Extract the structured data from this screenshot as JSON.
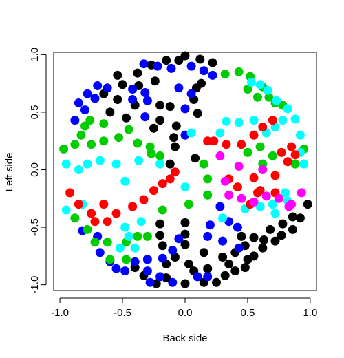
{
  "chart_data": {
    "type": "scatter",
    "title": "",
    "xlabel": "Back side",
    "ylabel": "Left side",
    "xlim": [
      -1.05,
      1.05
    ],
    "ylim": [
      -1.05,
      1.02
    ],
    "x_ticks": [
      -1.0,
      -0.5,
      0.0,
      0.5,
      1.0
    ],
    "x_tick_labels": [
      "-1.0",
      "-0.5",
      "0.0",
      "0.5",
      "1.0"
    ],
    "y_ticks": [
      -1.0,
      -0.5,
      0.0,
      0.5,
      1.0
    ],
    "y_tick_labels": [
      "-1.0",
      "-0.5",
      "0.0",
      "0.5",
      "1.0"
    ],
    "grid": false,
    "colors": {
      "black": "#000000",
      "blue": "#0000FF",
      "green": "#00CC00",
      "cyan": "#00FFFF",
      "red": "#FF0000",
      "magenta": "#FF00FF"
    },
    "groups": [
      {
        "color": "black",
        "points": [
          [
            0.0,
            0.99
          ],
          [
            0.12,
            0.96
          ],
          [
            0.22,
            0.93
          ],
          [
            -0.15,
            0.95
          ],
          [
            -0.27,
            0.91
          ],
          [
            -0.05,
            0.95
          ],
          [
            -0.54,
            0.82
          ],
          [
            -0.5,
            0.74
          ],
          [
            -0.65,
            0.66
          ],
          [
            -0.38,
            0.84
          ],
          [
            -0.24,
            0.77
          ],
          [
            -0.37,
            0.73
          ],
          [
            -0.54,
            0.61
          ],
          [
            -0.6,
            0.5
          ],
          [
            -0.47,
            0.45
          ],
          [
            -0.4,
            0.56
          ],
          [
            -0.2,
            0.56
          ],
          [
            -0.12,
            0.55
          ],
          [
            -0.2,
            0.43
          ],
          [
            -0.25,
            0.36
          ],
          [
            0.09,
            0.71
          ],
          [
            0.07,
            0.61
          ],
          [
            0.13,
            0.75
          ],
          [
            0.1,
            0.49
          ],
          [
            -0.07,
            0.38
          ],
          [
            -0.09,
            0.28
          ],
          [
            -0.08,
            0.2
          ],
          [
            0.08,
            0.1
          ],
          [
            -0.12,
            0.05
          ],
          [
            0.98,
            -0.3
          ],
          [
            0.92,
            -0.42
          ],
          [
            0.86,
            -0.52
          ],
          [
            0.77,
            -0.57
          ],
          [
            0.72,
            -0.62
          ],
          [
            0.62,
            -0.68
          ],
          [
            0.55,
            -0.75
          ],
          [
            0.5,
            -0.78
          ],
          [
            0.48,
            -0.85
          ],
          [
            0.4,
            -0.88
          ],
          [
            0.32,
            -0.92
          ],
          [
            0.25,
            -0.98
          ],
          [
            0.15,
            -0.98
          ],
          [
            0.0,
            -0.99
          ],
          [
            -0.15,
            -0.94
          ],
          [
            -0.23,
            -0.99
          ],
          [
            -0.33,
            -0.92
          ],
          [
            -0.4,
            -0.85
          ],
          [
            0.07,
            -0.88
          ],
          [
            0.18,
            -0.86
          ],
          [
            0.35,
            -0.82
          ],
          [
            0.3,
            -0.76
          ],
          [
            0.4,
            -0.72
          ],
          [
            0.48,
            -0.66
          ],
          [
            0.45,
            -0.58
          ],
          [
            0.55,
            -0.59
          ],
          [
            0.63,
            -0.61
          ],
          [
            0.68,
            -0.52
          ],
          [
            0.78,
            -0.47
          ],
          [
            0.86,
            -0.41
          ],
          [
            0.03,
            -0.82
          ],
          [
            -0.15,
            -0.82
          ],
          [
            -0.08,
            -0.76
          ],
          [
            0.15,
            -0.72
          ],
          [
            0.0,
            -0.65
          ],
          [
            -0.18,
            -0.66
          ],
          [
            0.0,
            -0.56
          ],
          [
            -0.2,
            -0.57
          ],
          [
            0.0,
            -0.46
          ],
          [
            -0.2,
            -0.47
          ]
        ]
      },
      {
        "color": "blue",
        "points": [
          [
            -0.33,
            0.92
          ],
          [
            -0.22,
            0.9
          ],
          [
            -0.11,
            0.88
          ],
          [
            0.05,
            0.9
          ],
          [
            0.15,
            0.86
          ],
          [
            0.22,
            0.82
          ],
          [
            -0.7,
            0.73
          ],
          [
            -0.62,
            0.71
          ],
          [
            -0.78,
            0.66
          ],
          [
            -0.72,
            0.62
          ],
          [
            -0.85,
            0.58
          ],
          [
            -0.8,
            0.52
          ],
          [
            -0.88,
            0.43
          ],
          [
            -0.42,
            0.7
          ],
          [
            -0.32,
            0.67
          ],
          [
            -0.05,
            0.71
          ],
          [
            0.05,
            0.66
          ],
          [
            -0.42,
            0.61
          ],
          [
            -0.3,
            0.6
          ],
          [
            -0.32,
            0.46
          ],
          [
            0.0,
            0.53
          ],
          [
            0.0,
            0.3
          ],
          [
            -0.82,
            -0.53
          ],
          [
            -0.7,
            -0.58
          ],
          [
            -0.68,
            -0.72
          ],
          [
            -0.6,
            -0.8
          ],
          [
            -0.55,
            -0.86
          ],
          [
            -0.48,
            -0.88
          ],
          [
            -0.3,
            -0.88
          ],
          [
            -0.28,
            -0.98
          ],
          [
            -0.2,
            -0.93
          ],
          [
            -0.1,
            -0.98
          ],
          [
            0.1,
            -0.93
          ],
          [
            0.18,
            -0.93
          ],
          [
            -0.4,
            -0.8
          ],
          [
            -0.3,
            -0.78
          ],
          [
            -0.18,
            -0.77
          ],
          [
            -0.1,
            -0.7
          ],
          [
            -0.05,
            -0.6
          ],
          [
            0.18,
            -0.58
          ],
          [
            0.2,
            -0.48
          ],
          [
            0.3,
            -0.62
          ],
          [
            0.42,
            -0.5
          ],
          [
            0.43,
            -0.68
          ],
          [
            0.35,
            -0.45
          ],
          [
            0.28,
            -0.32
          ]
        ]
      },
      {
        "color": "green",
        "points": [
          [
            0.32,
            0.83
          ],
          [
            0.43,
            0.85
          ],
          [
            0.52,
            0.81
          ],
          [
            0.5,
            0.7
          ],
          [
            0.62,
            0.72
          ],
          [
            0.67,
            0.63
          ],
          [
            0.58,
            0.63
          ],
          [
            0.72,
            0.58
          ],
          [
            0.78,
            0.56
          ],
          [
            -0.76,
            0.43
          ],
          [
            -0.8,
            0.38
          ],
          [
            -0.83,
            0.3
          ],
          [
            -0.75,
            0.22
          ],
          [
            -0.88,
            0.22
          ],
          [
            -0.97,
            0.18
          ],
          [
            -0.65,
            0.4
          ],
          [
            -0.53,
            0.28
          ],
          [
            -0.65,
            0.25
          ],
          [
            -0.45,
            0.35
          ],
          [
            -0.38,
            0.23
          ],
          [
            -0.27,
            0.14
          ],
          [
            -0.2,
            0.12
          ],
          [
            -0.28,
            0.2
          ],
          [
            0.95,
            0.18
          ],
          [
            0.88,
            0.05
          ],
          [
            0.7,
            0.12
          ],
          [
            0.62,
            0.05
          ],
          [
            0.6,
            0.2
          ],
          [
            0.5,
            0.15
          ],
          [
            -0.88,
            -0.42
          ],
          [
            -0.78,
            -0.52
          ],
          [
            -0.72,
            -0.63
          ],
          [
            -0.62,
            -0.63
          ],
          [
            -0.47,
            -0.63
          ],
          [
            -0.6,
            -0.78
          ],
          [
            -0.47,
            -0.78
          ],
          [
            -0.38,
            -0.58
          ],
          [
            -0.3,
            -0.58
          ],
          [
            -0.18,
            -0.35
          ],
          [
            0.03,
            -0.3
          ],
          [
            0.18,
            -0.22
          ],
          [
            0.18,
            -0.08
          ],
          [
            0.15,
            0.05
          ]
        ]
      },
      {
        "color": "cyan",
        "points": [
          [
            0.53,
            0.76
          ],
          [
            0.6,
            0.74
          ],
          [
            0.66,
            0.69
          ],
          [
            0.73,
            0.6
          ],
          [
            0.82,
            0.53
          ],
          [
            0.88,
            0.44
          ],
          [
            0.92,
            0.3
          ],
          [
            0.92,
            0.15
          ],
          [
            0.95,
            0.05
          ],
          [
            0.78,
            0.43
          ],
          [
            0.72,
            0.37
          ],
          [
            0.65,
            0.32
          ],
          [
            0.55,
            0.43
          ],
          [
            0.43,
            0.41
          ],
          [
            0.33,
            0.42
          ],
          [
            0.28,
            0.32
          ],
          [
            0.05,
            0.32
          ],
          [
            -0.95,
            0.05
          ],
          [
            -0.85,
            0.0
          ],
          [
            -0.78,
            0.05
          ],
          [
            -0.68,
            0.08
          ],
          [
            -0.55,
            0.05
          ],
          [
            -0.48,
            -0.1
          ],
          [
            -0.37,
            0.08
          ],
          [
            -0.2,
            0.05
          ],
          [
            -0.95,
            -0.35
          ],
          [
            -0.82,
            -0.3
          ],
          [
            -0.48,
            -0.5
          ],
          [
            -0.35,
            -0.45
          ],
          [
            -0.45,
            -0.58
          ],
          [
            -0.52,
            -0.68
          ],
          [
            -0.4,
            -0.68
          ],
          [
            0.0,
            -0.15
          ],
          [
            0.3,
            -0.42
          ],
          [
            0.48,
            -0.34
          ],
          [
            0.6,
            -0.32
          ],
          [
            0.7,
            -0.3
          ],
          [
            0.82,
            -0.27
          ],
          [
            0.72,
            -0.38
          ],
          [
            0.8,
            -0.2
          ]
        ]
      },
      {
        "color": "red",
        "points": [
          [
            0.7,
            0.43
          ],
          [
            0.62,
            0.37
          ],
          [
            0.55,
            0.3
          ],
          [
            0.45,
            0.22
          ],
          [
            0.33,
            0.22
          ],
          [
            0.23,
            0.25
          ],
          [
            0.18,
            0.25
          ],
          [
            0.85,
            0.2
          ],
          [
            0.77,
            0.15
          ],
          [
            0.88,
            0.13
          ],
          [
            0.82,
            0.07
          ],
          [
            0.72,
            -0.05
          ],
          [
            -0.92,
            -0.2
          ],
          [
            -0.85,
            -0.3
          ],
          [
            -0.75,
            -0.38
          ],
          [
            -0.65,
            -0.3
          ],
          [
            -0.55,
            -0.38
          ],
          [
            -0.42,
            -0.32
          ],
          [
            -0.33,
            -0.26
          ],
          [
            -0.25,
            -0.18
          ],
          [
            -0.18,
            -0.12
          ],
          [
            -0.12,
            -0.08
          ],
          [
            -0.08,
            -0.02
          ],
          [
            0.42,
            -0.15
          ],
          [
            0.55,
            -0.07
          ],
          [
            0.58,
            -0.2
          ],
          [
            0.72,
            -0.2
          ],
          [
            0.6,
            -0.18
          ],
          [
            0.52,
            -0.3
          ],
          [
            0.35,
            -0.08
          ],
          [
            -0.72,
            -0.45
          ],
          [
            -0.62,
            -0.45
          ]
        ]
      },
      {
        "color": "magenta",
        "points": [
          [
            0.28,
            0.12
          ],
          [
            0.43,
            0.03
          ],
          [
            0.62,
            0.0
          ],
          [
            0.32,
            -0.1
          ],
          [
            0.35,
            -0.22
          ],
          [
            0.45,
            -0.25
          ],
          [
            0.55,
            -0.28
          ],
          [
            0.65,
            -0.23
          ],
          [
            0.75,
            -0.25
          ],
          [
            0.85,
            -0.3
          ],
          [
            0.93,
            -0.2
          ],
          [
            0.83,
            -0.32
          ]
        ]
      }
    ]
  }
}
